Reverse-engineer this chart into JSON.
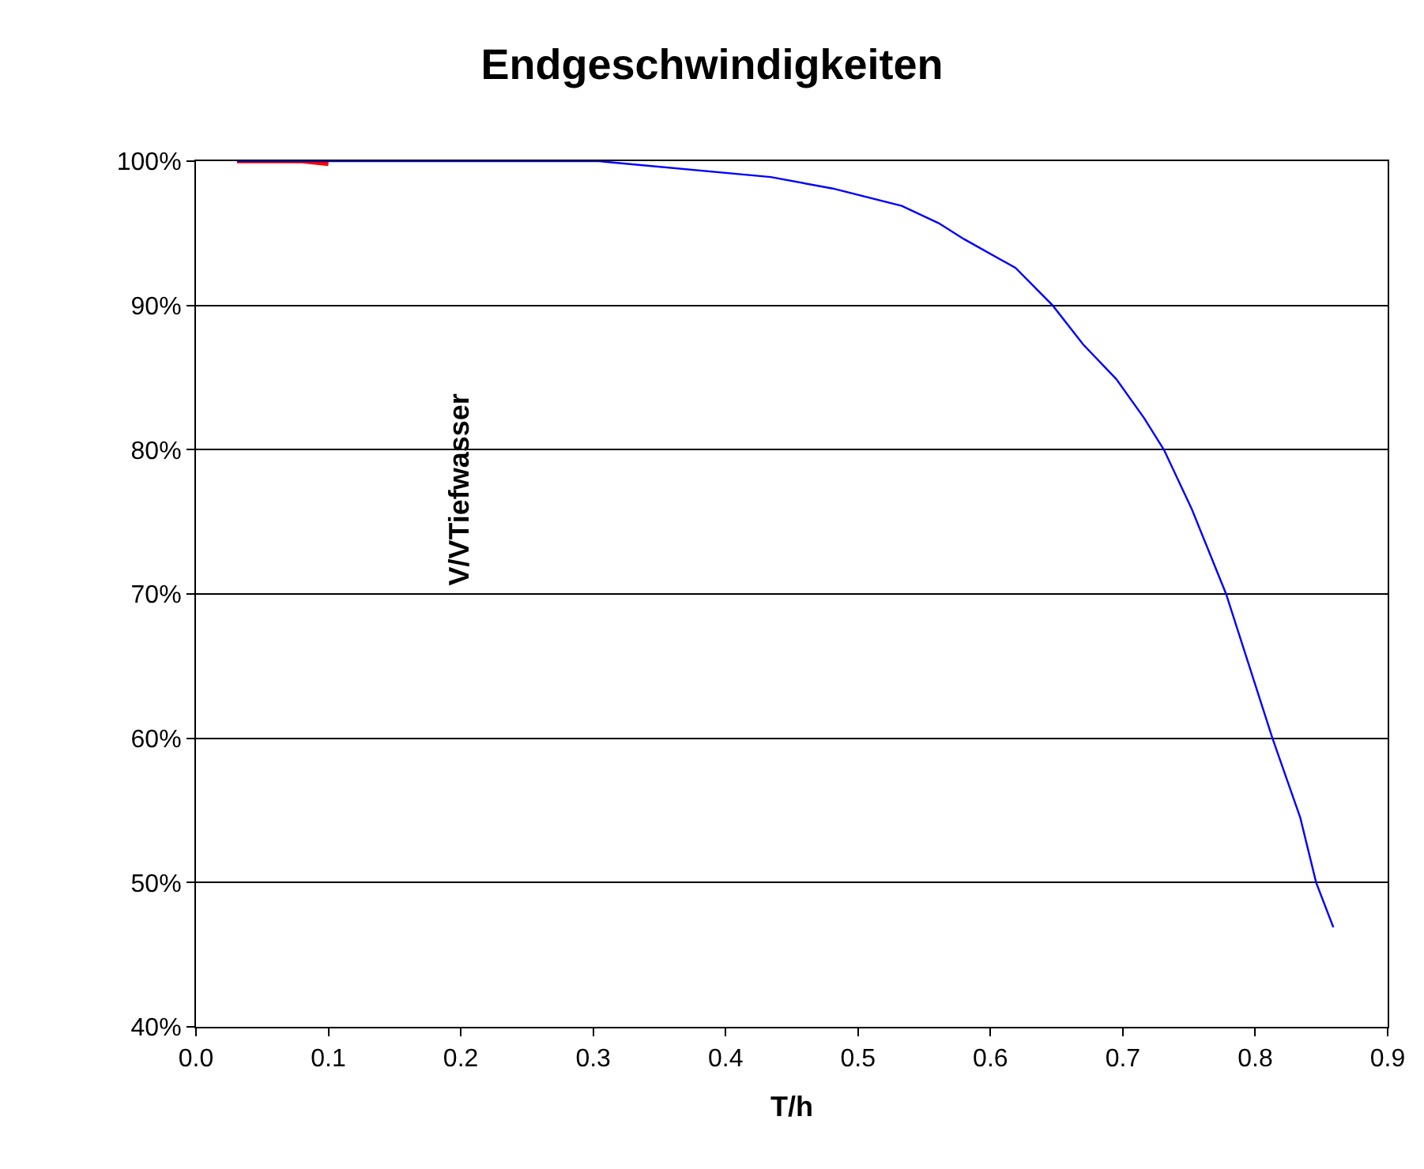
{
  "chart_data": {
    "type": "line",
    "title": "Endgeschwindigkeiten",
    "xlabel": "T/h",
    "ylabel": "V/VTiefwasser",
    "series": [
      {
        "color": "#ff0000",
        "x": [
          0.031,
          0.08,
          0.1
        ],
        "values": [
          100,
          100,
          99.8
        ]
      },
      {
        "color": "#0000ff",
        "x": [
          0.031,
          0.173,
          0.197,
          0.25,
          0.274,
          0.304,
          0.434,
          0.481,
          0.533,
          0.561,
          0.58,
          0.619,
          0.647,
          0.67,
          0.695,
          0.716,
          0.731,
          0.752,
          0.778,
          0.813,
          0.834,
          0.846,
          0.859
        ],
        "values": [
          100,
          100,
          100,
          100,
          100,
          100,
          98.9,
          98.1,
          96.9,
          95.7,
          94.6,
          92.6,
          90,
          87.3,
          84.9,
          82.2,
          80,
          75.9,
          70,
          60,
          54.5,
          50,
          46.9
        ]
      }
    ],
    "xlim": [
      0,
      0.9
    ],
    "ylim": [
      40,
      100
    ],
    "xticks": [
      {
        "value": 0,
        "label": "0.0"
      },
      0.1,
      0.2,
      0.3,
      0.4,
      0.5,
      0.6,
      0.7,
      0.8,
      0.9
    ],
    "yticks": [
      {
        "value": 40,
        "label": "40%"
      },
      {
        "value": 50,
        "label": "50%"
      },
      {
        "value": 60,
        "label": "60%"
      },
      {
        "value": 70,
        "label": "70%"
      },
      {
        "value": 80,
        "label": "80%"
      },
      {
        "value": 90,
        "label": "90%"
      },
      {
        "value": 100,
        "label": "100%"
      }
    ],
    "grid": "y",
    "marker": "none",
    "line_style": "solid"
  }
}
